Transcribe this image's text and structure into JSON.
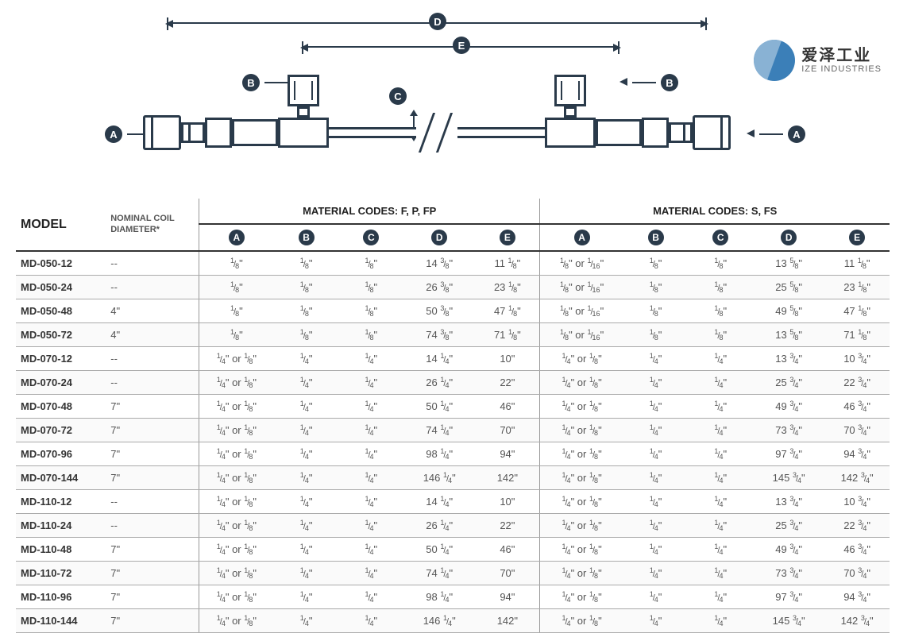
{
  "logo": {
    "cn": "爱泽工业",
    "en": "IZE INDUSTRIES"
  },
  "diagram": {
    "labels": {
      "A": "A",
      "B": "B",
      "C": "C",
      "D": "D",
      "E": "E"
    }
  },
  "table": {
    "header": {
      "model": "MODEL",
      "coil_l1": "NOMINAL COIL",
      "coil_l2": "DIAMETER*",
      "group1": "MATERIAL CODES: F, P, FP",
      "group2": "MATERIAL CODES: S, FS",
      "cols": [
        "A",
        "B",
        "C",
        "D",
        "E"
      ]
    },
    "rows": [
      {
        "model": "MD-050-12",
        "coil": "--",
        "g1": [
          "1/8\"",
          "1/8\"",
          "1/8\"",
          "14 3/8\"",
          "11 1/8\""
        ],
        "g2": [
          "1/8\" or 1/16\"",
          "1/8\"",
          "1/8\"",
          "13 5/8\"",
          "11 1/8\""
        ]
      },
      {
        "model": "MD-050-24",
        "coil": "--",
        "g1": [
          "1/8\"",
          "1/8\"",
          "1/8\"",
          "26 3/8\"",
          "23 1/8\""
        ],
        "g2": [
          "1/8\" or 1/16\"",
          "1/8\"",
          "1/8\"",
          "25 5/8\"",
          "23 1/8\""
        ]
      },
      {
        "model": "MD-050-48",
        "coil": "4\"",
        "g1": [
          "1/8\"",
          "1/8\"",
          "1/8\"",
          "50 3/8\"",
          "47 1/8\""
        ],
        "g2": [
          "1/8\" or 1/16\"",
          "1/8\"",
          "1/8\"",
          "49 5/8\"",
          "47 1/8\""
        ]
      },
      {
        "model": "MD-050-72",
        "coil": "4\"",
        "g1": [
          "1/8\"",
          "1/8\"",
          "1/8\"",
          "74 3/8\"",
          "71 1/8\""
        ],
        "g2": [
          "1/8\" or 1/16\"",
          "1/8\"",
          "1/8\"",
          "13 5/8\"",
          "71 1/8\""
        ]
      },
      {
        "model": "MD-070-12",
        "coil": "--",
        "g1": [
          "1/4\" or 1/8\"",
          "1/4\"",
          "1/4\"",
          "14 1/4\"",
          "10\""
        ],
        "g2": [
          "1/4\" or 1/8\"",
          "1/4\"",
          "1/4\"",
          "13 3/4\"",
          "10 3/4\""
        ]
      },
      {
        "model": "MD-070-24",
        "coil": "--",
        "g1": [
          "1/4\" or 1/8\"",
          "1/4\"",
          "1/4\"",
          "26 1/4\"",
          "22\""
        ],
        "g2": [
          "1/4\" or 1/8\"",
          "1/4\"",
          "1/4\"",
          "25 3/4\"",
          "22 3/4\""
        ]
      },
      {
        "model": "MD-070-48",
        "coil": "7\"",
        "g1": [
          "1/4\" or 1/8\"",
          "1/4\"",
          "1/4\"",
          "50 1/4\"",
          "46\""
        ],
        "g2": [
          "1/4\" or 1/8\"",
          "1/4\"",
          "1/4\"",
          "49 3/4\"",
          "46 3/4\""
        ]
      },
      {
        "model": "MD-070-72",
        "coil": "7\"",
        "g1": [
          "1/4\" or 1/8\"",
          "1/4\"",
          "1/4\"",
          "74 1/4\"",
          "70\""
        ],
        "g2": [
          "1/4\" or 1/8\"",
          "1/4\"",
          "1/4\"",
          "73 3/4\"",
          "70 3/4\""
        ]
      },
      {
        "model": "MD-070-96",
        "coil": "7\"",
        "g1": [
          "1/4\" or 1/8\"",
          "1/4\"",
          "1/4\"",
          "98 1/4\"",
          "94\""
        ],
        "g2": [
          "1/4\" or 1/8\"",
          "1/4\"",
          "1/4\"",
          "97 3/4\"",
          "94 3/4\""
        ]
      },
      {
        "model": "MD-070-144",
        "coil": "7\"",
        "g1": [
          "1/4\" or 1/8\"",
          "1/4\"",
          "1/4\"",
          "146 1/4\"",
          "142\""
        ],
        "g2": [
          "1/4\" or 1/8\"",
          "1/4\"",
          "1/4\"",
          "145 3/4\"",
          "142 3/4\""
        ]
      },
      {
        "model": "MD-110-12",
        "coil": "--",
        "g1": [
          "1/4\" or 1/8\"",
          "1/4\"",
          "1/4\"",
          "14 1/4\"",
          "10\""
        ],
        "g2": [
          "1/4\" or 1/8\"",
          "1/4\"",
          "1/4\"",
          "13 3/4\"",
          "10 3/4\""
        ]
      },
      {
        "model": "MD-110-24",
        "coil": "--",
        "g1": [
          "1/4\" or 1/8\"",
          "1/4\"",
          "1/4\"",
          "26 1/4\"",
          "22\""
        ],
        "g2": [
          "1/4\" or 1/8\"",
          "1/4\"",
          "1/4\"",
          "25 3/4\"",
          "22 3/4\""
        ]
      },
      {
        "model": "MD-110-48",
        "coil": "7\"",
        "g1": [
          "1/4\" or 1/8\"",
          "1/4\"",
          "1/4\"",
          "50 1/4\"",
          "46\""
        ],
        "g2": [
          "1/4\" or 1/8\"",
          "1/4\"",
          "1/4\"",
          "49 3/4\"",
          "46 3/4\""
        ]
      },
      {
        "model": "MD-110-72",
        "coil": "7\"",
        "g1": [
          "1/4\" or 1/8\"",
          "1/4\"",
          "1/4\"",
          "74 1/4\"",
          "70\""
        ],
        "g2": [
          "1/4\" or 1/8\"",
          "1/4\"",
          "1/4\"",
          "73 3/4\"",
          "70 3/4\""
        ]
      },
      {
        "model": "MD-110-96",
        "coil": "7\"",
        "g1": [
          "1/4\" or 1/8\"",
          "1/4\"",
          "1/4\"",
          "98 1/4\"",
          "94\""
        ],
        "g2": [
          "1/4\" or 1/8\"",
          "1/4\"",
          "1/4\"",
          "97 3/4\"",
          "94 3/4\""
        ]
      },
      {
        "model": "MD-110-144",
        "coil": "7\"",
        "g1": [
          "1/4\" or 1/8\"",
          "1/4\"",
          "1/4\"",
          "146 1/4\"",
          "142\""
        ],
        "g2": [
          "1/4\" or 1/8\"",
          "1/4\"",
          "1/4\"",
          "145 3/4\"",
          "142 3/4\""
        ]
      }
    ]
  },
  "colors": {
    "ink": "#2a3a4a",
    "accent": "#3b7fb8",
    "text_muted": "#555555"
  }
}
